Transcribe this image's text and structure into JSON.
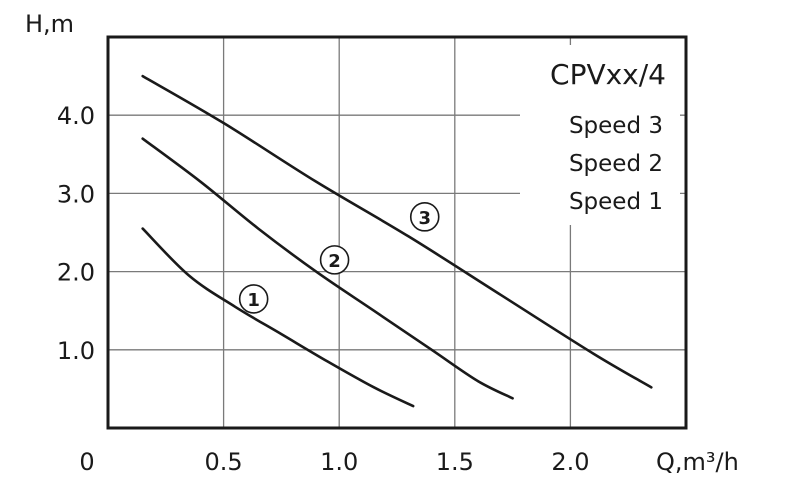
{
  "chart_data": {
    "type": "line",
    "title": "CPVxx/4",
    "xlabel": "Q,m³/h",
    "ylabel": "H,m",
    "xlim": [
      0,
      2.5
    ],
    "ylim": [
      0,
      5
    ],
    "xticks": [
      0.5,
      1.0,
      1.5,
      2.0
    ],
    "xtick_labels": [
      "0.5",
      "1.0",
      "1.5",
      "2.0"
    ],
    "yticks": [
      1.0,
      2.0,
      3.0,
      4.0
    ],
    "ytick_labels": [
      "1.0",
      "2.0",
      "3.0",
      "4.0"
    ],
    "origin_label": "0",
    "grid": true,
    "legend": [
      "Speed 3",
      "Speed 2",
      "Speed 1"
    ],
    "legend_position": "top-right",
    "line_color": "#1a1a1a",
    "series": [
      {
        "name": "Speed 1",
        "marker": "1",
        "x": [
          0.15,
          0.35,
          0.55,
          0.75,
          0.95,
          1.15,
          1.32
        ],
        "y": [
          2.55,
          1.95,
          1.55,
          1.2,
          0.85,
          0.52,
          0.28
        ],
        "marker_at": [
          0.63,
          1.65
        ]
      },
      {
        "name": "Speed 2",
        "marker": "2",
        "x": [
          0.15,
          0.4,
          0.65,
          0.9,
          1.15,
          1.4,
          1.6,
          1.75
        ],
        "y": [
          3.7,
          3.15,
          2.55,
          2.0,
          1.5,
          1.0,
          0.6,
          0.38
        ],
        "marker_at": [
          0.98,
          2.15
        ]
      },
      {
        "name": "Speed 3",
        "marker": "3",
        "x": [
          0.15,
          0.5,
          0.9,
          1.3,
          1.7,
          2.1,
          2.35
        ],
        "y": [
          4.5,
          3.9,
          3.15,
          2.45,
          1.7,
          0.95,
          0.52
        ],
        "marker_at": [
          1.37,
          2.7
        ]
      }
    ]
  }
}
